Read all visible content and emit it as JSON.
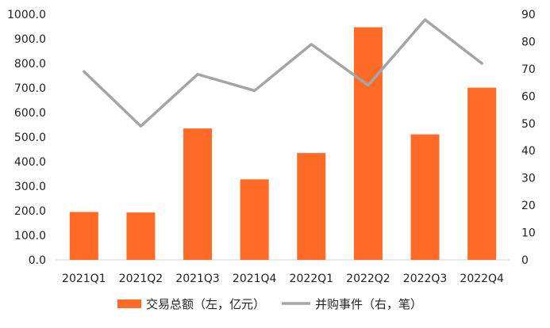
{
  "chart_data": {
    "type": "bar",
    "title": "",
    "categories": [
      "2021Q1",
      "2021Q2",
      "2021Q3",
      "2021Q4",
      "2022Q1",
      "2022Q2",
      "2022Q3",
      "2022Q4"
    ],
    "series": [
      {
        "name": "交易总额（左，亿元）",
        "type": "bar",
        "axis": "left",
        "color": "#FF6A26",
        "values": [
          195,
          193,
          535,
          328,
          435,
          947,
          511,
          701
        ]
      },
      {
        "name": "并购事件（右，笔）",
        "type": "line",
        "axis": "right",
        "color": "#A5A5A5",
        "values": [
          69,
          49,
          68,
          62,
          79,
          64,
          88,
          72
        ]
      }
    ],
    "y_left": {
      "min": 0,
      "max": 1000,
      "step": 100,
      "tick_labels": [
        "0.0",
        "100.0",
        "200.0",
        "300.0",
        "400.0",
        "500.0",
        "600.0",
        "700.0",
        "800.0",
        "900.0",
        "1000.0"
      ]
    },
    "y_right": {
      "min": 0,
      "max": 90,
      "step": 10,
      "tick_labels": [
        "0",
        "10",
        "20",
        "30",
        "40",
        "50",
        "60",
        "70",
        "80",
        "90"
      ]
    },
    "grid": false,
    "legend_position": "bottom"
  }
}
